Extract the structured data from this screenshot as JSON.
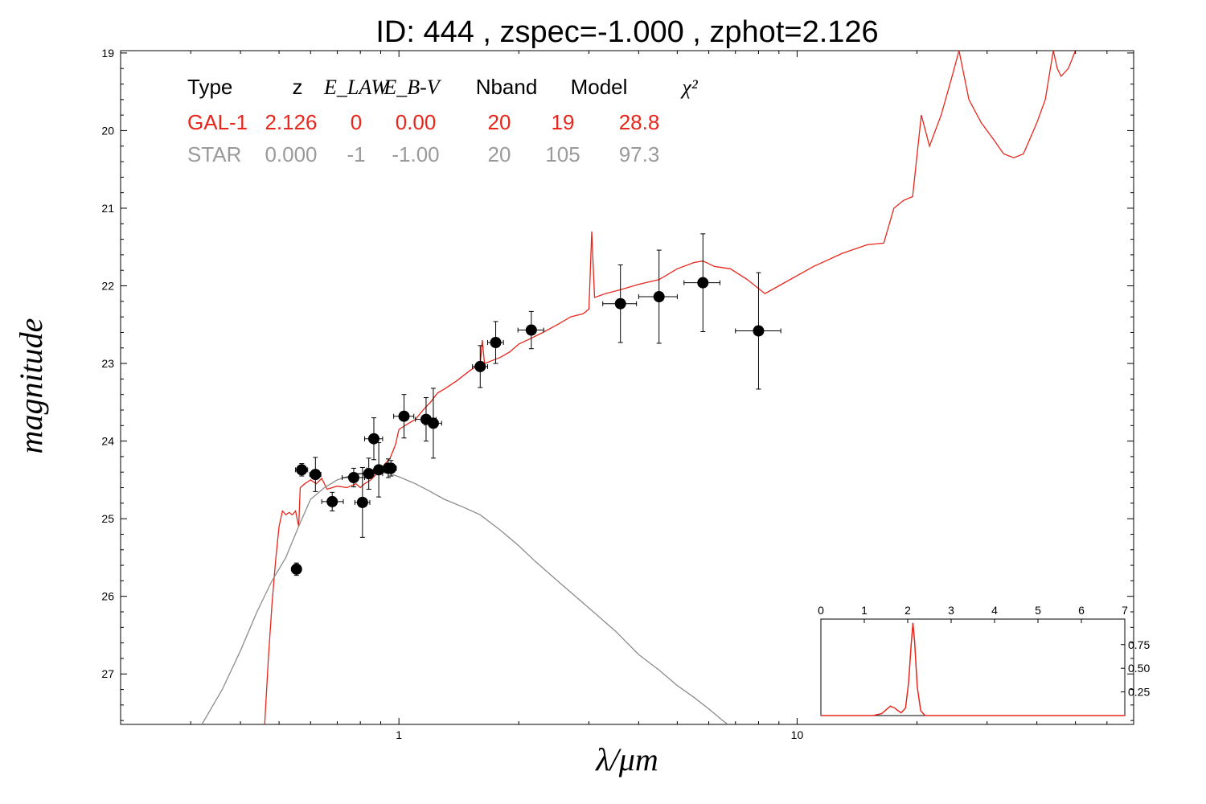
{
  "chart_data": {
    "type": "scatter",
    "title": "ID:  444    , zspec=-1.000 , zphot=2.126",
    "xlabel": "λ/μm",
    "ylabel": "magnitude",
    "xscale": "log",
    "xlim": [
      0.2,
      70
    ],
    "ylim": [
      27.65,
      18.97
    ],
    "y_inverted": true,
    "x_ticks": [
      {
        "value": 1,
        "label": "1"
      },
      {
        "value": 10,
        "label": "10"
      }
    ],
    "y_ticks": [
      {
        "value": 19,
        "label": "19"
      },
      {
        "value": 20,
        "label": "20"
      },
      {
        "value": 21,
        "label": "21"
      },
      {
        "value": 22,
        "label": "22"
      },
      {
        "value": 23,
        "label": "23"
      },
      {
        "value": 24,
        "label": "24"
      },
      {
        "value": 25,
        "label": "25"
      },
      {
        "value": 26,
        "label": "26"
      },
      {
        "value": 27,
        "label": "27"
      }
    ],
    "grid": false,
    "fit_table": {
      "headers": [
        "Type",
        "z",
        "E_LAW",
        "E_B-V",
        "Nband",
        "Model",
        "χ²"
      ],
      "rows": [
        {
          "cells": [
            "GAL-1",
            "2.126",
            "0",
            "0.00",
            "20",
            "19",
            "28.8"
          ],
          "color": "#e8261b"
        },
        {
          "cells": [
            "STAR",
            "0.000",
            "-1",
            "-1.00",
            "20",
            "105",
            "97.3"
          ],
          "color": "#9a9a9a"
        }
      ]
    },
    "photometry": [
      {
        "x": 0.57,
        "y": 24.37,
        "xerr": [
          0.02,
          0.02
        ],
        "yerr": 0.08
      },
      {
        "x": 0.553,
        "y": 25.65,
        "xerr": [
          0.015,
          0.015
        ],
        "yerr": 0.08
      },
      {
        "x": 0.617,
        "y": 24.43,
        "xerr": [
          0.02,
          0.02
        ],
        "yerr": 0.22
      },
      {
        "x": 0.68,
        "y": 24.78,
        "xerr": [
          0.04,
          0.045
        ],
        "yerr": 0.12
      },
      {
        "x": 0.77,
        "y": 24.47,
        "xerr": [
          0.05,
          0.05
        ],
        "yerr": 0.12
      },
      {
        "x": 0.81,
        "y": 24.79,
        "xerr": [
          0.035,
          0.035
        ],
        "yerr": 0.45
      },
      {
        "x": 0.865,
        "y": 23.97,
        "xerr": [
          0.045,
          0.045
        ],
        "yerr": 0.27
      },
      {
        "x": 0.84,
        "y": 24.42,
        "xerr": [
          0.07,
          0.07
        ],
        "yerr": 0.2
      },
      {
        "x": 0.89,
        "y": 24.37,
        "xerr": [
          0.06,
          0.07
        ],
        "yerr": 0.35
      },
      {
        "x": 0.94,
        "y": 24.35,
        "xerr": [
          0.03,
          0.03
        ],
        "yerr": 0.12
      },
      {
        "x": 0.955,
        "y": 24.35,
        "xerr": [
          0.03,
          0.03
        ],
        "yerr": 0.1
      },
      {
        "x": 1.03,
        "y": 23.68,
        "xerr": [
          0.06,
          0.06
        ],
        "yerr": 0.28
      },
      {
        "x": 1.17,
        "y": 23.72,
        "xerr": [
          0.07,
          0.07
        ],
        "yerr": 0.28
      },
      {
        "x": 1.22,
        "y": 23.77,
        "xerr": [
          0.06,
          0.06
        ],
        "yerr": 0.45
      },
      {
        "x": 1.6,
        "y": 23.04,
        "xerr": [
          0.07,
          0.07
        ],
        "yerr": 0.27
      },
      {
        "x": 1.75,
        "y": 22.73,
        "xerr": [
          0.08,
          0.08
        ],
        "yerr": 0.27
      },
      {
        "x": 2.15,
        "y": 22.57,
        "xerr": [
          0.16,
          0.16
        ],
        "yerr": 0.24
      },
      {
        "x": 3.6,
        "y": 22.23,
        "xerr": [
          0.35,
          0.35
        ],
        "yerr": 0.5
      },
      {
        "x": 4.5,
        "y": 22.14,
        "xerr": [
          0.5,
          0.5
        ],
        "yerr": 0.6
      },
      {
        "x": 5.8,
        "y": 21.96,
        "xerr": [
          0.6,
          0.6
        ],
        "yerr": 0.63
      },
      {
        "x": 8.0,
        "y": 22.58,
        "xerr": [
          1.0,
          1.1
        ],
        "yerr": 0.75
      }
    ],
    "series": [
      {
        "color": "#e8261b",
        "points": [
          [
            0.46,
            27.65
          ],
          [
            0.47,
            26.8
          ],
          [
            0.48,
            26.1
          ],
          [
            0.49,
            25.55
          ],
          [
            0.5,
            25.1
          ],
          [
            0.51,
            24.9
          ],
          [
            0.52,
            24.95
          ],
          [
            0.53,
            24.92
          ],
          [
            0.54,
            24.95
          ],
          [
            0.55,
            24.9
          ],
          [
            0.56,
            25.1
          ],
          [
            0.565,
            24.6
          ],
          [
            0.58,
            24.55
          ],
          [
            0.6,
            24.5
          ],
          [
            0.62,
            24.55
          ],
          [
            0.64,
            24.48
          ],
          [
            0.66,
            24.62
          ],
          [
            0.7,
            24.58
          ],
          [
            0.74,
            24.6
          ],
          [
            0.78,
            24.55
          ],
          [
            0.8,
            24.6
          ],
          [
            0.82,
            24.55
          ],
          [
            0.85,
            24.5
          ],
          [
            0.88,
            24.42
          ],
          [
            0.9,
            24.38
          ],
          [
            0.92,
            24.3
          ],
          [
            0.95,
            24.22
          ],
          [
            0.98,
            24.05
          ],
          [
            1.0,
            23.85
          ],
          [
            1.05,
            23.78
          ],
          [
            1.1,
            23.72
          ],
          [
            1.15,
            23.6
          ],
          [
            1.2,
            23.5
          ],
          [
            1.25,
            23.38
          ],
          [
            1.3,
            23.33
          ],
          [
            1.4,
            23.22
          ],
          [
            1.5,
            23.1
          ],
          [
            1.6,
            23.0
          ],
          [
            1.62,
            22.7
          ],
          [
            1.64,
            23.0
          ],
          [
            1.7,
            22.97
          ],
          [
            1.8,
            22.92
          ],
          [
            1.9,
            22.85
          ],
          [
            2.0,
            22.75
          ],
          [
            2.1,
            22.7
          ],
          [
            2.3,
            22.6
          ],
          [
            2.5,
            22.5
          ],
          [
            2.7,
            22.4
          ],
          [
            2.9,
            22.36
          ],
          [
            3.0,
            22.3
          ],
          [
            3.05,
            21.3
          ],
          [
            3.1,
            22.15
          ],
          [
            3.3,
            22.1
          ],
          [
            3.6,
            22.05
          ],
          [
            4.0,
            21.98
          ],
          [
            4.5,
            21.92
          ],
          [
            5.0,
            21.78
          ],
          [
            5.5,
            21.7
          ],
          [
            5.8,
            21.68
          ],
          [
            6.2,
            21.75
          ],
          [
            6.8,
            21.78
          ],
          [
            7.5,
            21.92
          ],
          [
            8.3,
            22.1
          ],
          [
            9.0,
            22.0
          ],
          [
            11.0,
            21.75
          ],
          [
            13.0,
            21.58
          ],
          [
            15.0,
            21.47
          ],
          [
            16.5,
            21.45
          ],
          [
            17.5,
            21.0
          ],
          [
            18.5,
            20.9
          ],
          [
            19.5,
            20.85
          ],
          [
            20.5,
            19.8
          ],
          [
            21.5,
            20.2
          ],
          [
            23.0,
            19.8
          ],
          [
            24.5,
            19.3
          ],
          [
            25.5,
            18.97
          ],
          [
            27.0,
            19.6
          ],
          [
            29.0,
            19.9
          ],
          [
            31.0,
            20.1
          ],
          [
            33.0,
            20.3
          ],
          [
            35.0,
            20.35
          ],
          [
            37.0,
            20.3
          ],
          [
            40.0,
            19.9
          ],
          [
            42.0,
            19.6
          ],
          [
            44.0,
            18.97
          ],
          [
            45.0,
            19.2
          ],
          [
            46.0,
            19.3
          ],
          [
            48.0,
            19.2
          ],
          [
            50.0,
            18.97
          ]
        ]
      },
      {
        "color": "#8c8c8c",
        "points": [
          [
            0.32,
            27.65
          ],
          [
            0.36,
            27.2
          ],
          [
            0.4,
            26.7
          ],
          [
            0.44,
            26.2
          ],
          [
            0.48,
            25.8
          ],
          [
            0.52,
            25.5
          ],
          [
            0.56,
            25.1
          ],
          [
            0.6,
            24.75
          ],
          [
            0.65,
            24.6
          ],
          [
            0.7,
            24.5
          ],
          [
            0.75,
            24.45
          ],
          [
            0.8,
            24.42
          ],
          [
            0.85,
            24.4
          ],
          [
            0.9,
            24.4
          ],
          [
            0.95,
            24.42
          ],
          [
            1.0,
            24.46
          ],
          [
            1.1,
            24.55
          ],
          [
            1.2,
            24.65
          ],
          [
            1.3,
            24.75
          ],
          [
            1.45,
            24.85
          ],
          [
            1.6,
            24.95
          ],
          [
            1.8,
            25.15
          ],
          [
            2.0,
            25.35
          ],
          [
            2.2,
            25.55
          ],
          [
            2.5,
            25.8
          ],
          [
            3.0,
            26.15
          ],
          [
            3.5,
            26.45
          ],
          [
            4.0,
            26.75
          ],
          [
            4.5,
            26.95
          ],
          [
            5.0,
            27.15
          ],
          [
            5.5,
            27.3
          ],
          [
            6.0,
            27.45
          ],
          [
            6.5,
            27.6
          ],
          [
            6.7,
            27.65
          ]
        ]
      }
    ],
    "inset": {
      "xlim": [
        0,
        7
      ],
      "x_ticks": [
        "0",
        "1",
        "2",
        "3",
        "4",
        "5",
        "6",
        "7"
      ],
      "y_ticks": [
        {
          "value": 0.25,
          "label": "0.25"
        },
        {
          "value": 0.5,
          "label": "0.50"
        },
        {
          "value": 0.75,
          "label": "0.75"
        }
      ],
      "ylim": [
        0,
        1.02
      ],
      "pdz": [
        [
          0,
          0
        ],
        [
          1.2,
          0
        ],
        [
          1.4,
          0.02
        ],
        [
          1.5,
          0.06
        ],
        [
          1.6,
          0.1
        ],
        [
          1.7,
          0.08
        ],
        [
          1.78,
          0.05
        ],
        [
          1.85,
          0.03
        ],
        [
          1.95,
          0.08
        ],
        [
          2.02,
          0.35
        ],
        [
          2.08,
          0.75
        ],
        [
          2.12,
          0.98
        ],
        [
          2.16,
          0.78
        ],
        [
          2.22,
          0.3
        ],
        [
          2.3,
          0.05
        ],
        [
          2.4,
          0
        ],
        [
          7,
          0
        ]
      ]
    }
  }
}
